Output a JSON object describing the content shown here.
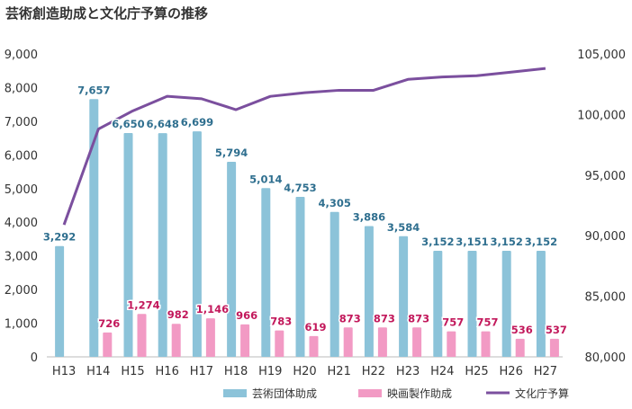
{
  "chart_data": {
    "type": "bar",
    "title": "芸術創造助成と文化庁予算の推移",
    "categories": [
      "H13",
      "H14",
      "H15",
      "H16",
      "H17",
      "H18",
      "H19",
      "H20",
      "H21",
      "H22",
      "H23",
      "H24",
      "H25",
      "H26",
      "H27"
    ],
    "series": [
      {
        "name": "芸術団体助成",
        "kind": "bar",
        "axis": "left",
        "color": "#8cc3d9",
        "label_color": "#2f6f8f",
        "values": [
          3292,
          7657,
          6650,
          6648,
          6699,
          5794,
          5014,
          4753,
          4305,
          3886,
          3584,
          3152,
          3151,
          3152,
          3152
        ],
        "labels": [
          "3,292",
          "7,657",
          "6,650",
          "6,648",
          "6,699",
          "5,794",
          "5,014",
          "4,753",
          "4,305",
          "3,886",
          "3,584",
          "3,152",
          "3,151",
          "3,152",
          "3,152"
        ]
      },
      {
        "name": "映画製作助成",
        "kind": "bar",
        "axis": "left",
        "color": "#f29ac4",
        "label_color": "#c2185b",
        "values": [
          null,
          726,
          1274,
          982,
          1146,
          966,
          783,
          619,
          873,
          873,
          873,
          757,
          757,
          536,
          537
        ],
        "labels": [
          "",
          "726",
          "1,274",
          "982",
          "1,146",
          "966",
          "783",
          "619",
          "873",
          "873",
          "873",
          "757",
          "757",
          "536",
          "537"
        ]
      },
      {
        "name": "文化庁予算",
        "kind": "line",
        "axis": "right",
        "color": "#7b4f9e",
        "values": [
          90900,
          98800,
          100300,
          101500,
          101300,
          100400,
          101500,
          101800,
          102000,
          102000,
          102900,
          103100,
          103200,
          103500,
          103800
        ]
      }
    ],
    "y_left": {
      "min": 0,
      "max": 9000,
      "ticks": [
        "0",
        "1,000",
        "2,000",
        "3,000",
        "4,000",
        "5,000",
        "6,000",
        "7,000",
        "8,000",
        "9,000"
      ]
    },
    "y_right": {
      "min": 80000,
      "max": 105000,
      "ticks": [
        "80,000",
        "85,000",
        "90,000",
        "95,000",
        "100,000",
        "105,000"
      ]
    },
    "legend": {
      "placement": "bottom-right"
    }
  }
}
